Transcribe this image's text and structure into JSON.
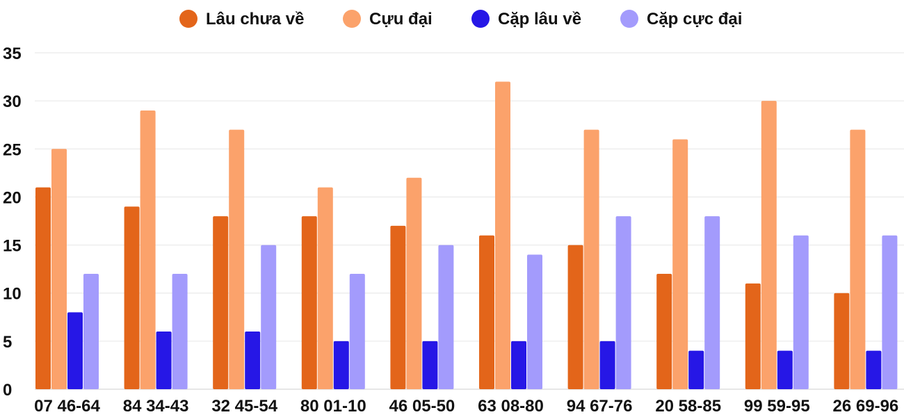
{
  "chart_data": {
    "type": "bar",
    "title": "",
    "xlabel": "",
    "ylabel": "",
    "ylim": [
      0,
      35
    ],
    "yticks": [
      0,
      5,
      10,
      15,
      20,
      25,
      30,
      35
    ],
    "grid": true,
    "legend_position": "top",
    "categories": [
      "07 46-64",
      "84 34-43",
      "32 45-54",
      "80 01-10",
      "46 05-50",
      "63 08-80",
      "94 67-76",
      "20 58-85",
      "99 59-95",
      "26 69-96"
    ],
    "series": [
      {
        "name": "Lâu chưa về",
        "color": "#e3651a",
        "values": [
          21,
          19,
          18,
          18,
          17,
          16,
          15,
          12,
          11,
          10
        ]
      },
      {
        "name": "Cựu đại",
        "color": "#fba26b",
        "values": [
          25,
          29,
          27,
          21,
          22,
          32,
          27,
          26,
          30,
          27
        ]
      },
      {
        "name": "Cặp lâu về",
        "color": "#2617e6",
        "values": [
          8,
          6,
          6,
          5,
          5,
          5,
          5,
          4,
          4,
          4
        ]
      },
      {
        "name": "Cặp cực đại",
        "color": "#a39bfc",
        "values": [
          12,
          12,
          15,
          12,
          15,
          14,
          18,
          18,
          16,
          16
        ]
      }
    ]
  }
}
